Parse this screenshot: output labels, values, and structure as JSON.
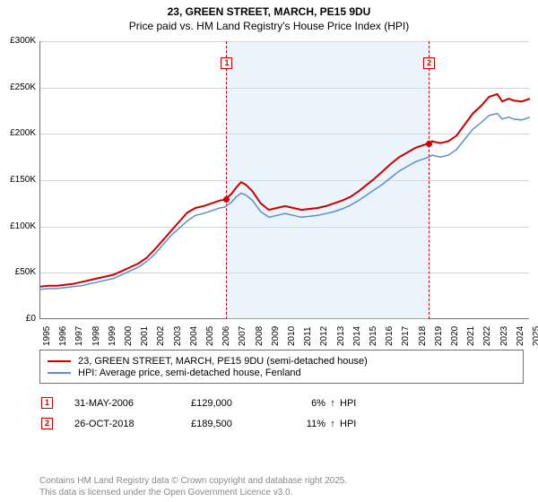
{
  "chart": {
    "type": "line",
    "address": "23, GREEN STREET, MARCH, PE15 9DU",
    "subtitle": "Price paid vs. HM Land Registry's House Price Index (HPI)",
    "background_color": "#ffffff",
    "axis_color": "#707070",
    "grid_color": "#d0d0d0",
    "axis_label_fontsize": 10,
    "ylim": [
      0,
      300000
    ],
    "ytick_step": 50000,
    "yticks": [
      "£0",
      "£50K",
      "£100K",
      "£150K",
      "£200K",
      "£250K",
      "£300K"
    ],
    "xlim": [
      1995,
      2025
    ],
    "xticks": [
      1995,
      1996,
      1997,
      1998,
      1999,
      2000,
      2001,
      2002,
      2003,
      2004,
      2005,
      2006,
      2007,
      2008,
      2009,
      2010,
      2011,
      2012,
      2013,
      2014,
      2015,
      2016,
      2017,
      2018,
      2019,
      2020,
      2021,
      2022,
      2023,
      2024,
      2025
    ],
    "series": [
      {
        "name": "property",
        "label": "23, GREEN STREET, MARCH, PE15 9DU (semi-detached house)",
        "color": "#cc0000",
        "line_width": 2,
        "values": [
          [
            1995,
            35000
          ],
          [
            1995.5,
            36000
          ],
          [
            1996,
            36000
          ],
          [
            1996.5,
            37000
          ],
          [
            1997,
            38000
          ],
          [
            1997.5,
            40000
          ],
          [
            1998,
            42000
          ],
          [
            1998.5,
            44000
          ],
          [
            1999,
            46000
          ],
          [
            1999.5,
            48000
          ],
          [
            2000,
            52000
          ],
          [
            2000.5,
            56000
          ],
          [
            2001,
            60000
          ],
          [
            2001.5,
            66000
          ],
          [
            2002,
            75000
          ],
          [
            2002.5,
            85000
          ],
          [
            2003,
            95000
          ],
          [
            2003.5,
            105000
          ],
          [
            2004,
            115000
          ],
          [
            2004.5,
            120000
          ],
          [
            2005,
            122000
          ],
          [
            2005.5,
            125000
          ],
          [
            2006,
            128000
          ],
          [
            2006.3,
            129000
          ],
          [
            2006.7,
            135000
          ],
          [
            2007,
            142000
          ],
          [
            2007.3,
            148000
          ],
          [
            2007.6,
            145000
          ],
          [
            2008,
            138000
          ],
          [
            2008.5,
            125000
          ],
          [
            2009,
            118000
          ],
          [
            2009.5,
            120000
          ],
          [
            2010,
            122000
          ],
          [
            2010.5,
            120000
          ],
          [
            2011,
            118000
          ],
          [
            2011.5,
            119000
          ],
          [
            2012,
            120000
          ],
          [
            2012.5,
            122000
          ],
          [
            2013,
            125000
          ],
          [
            2013.5,
            128000
          ],
          [
            2014,
            132000
          ],
          [
            2014.5,
            138000
          ],
          [
            2015,
            145000
          ],
          [
            2015.5,
            152000
          ],
          [
            2016,
            160000
          ],
          [
            2016.5,
            168000
          ],
          [
            2017,
            175000
          ],
          [
            2017.5,
            180000
          ],
          [
            2018,
            185000
          ],
          [
            2018.5,
            188000
          ],
          [
            2018.8,
            190000
          ],
          [
            2019,
            192000
          ],
          [
            2019.5,
            190000
          ],
          [
            2020,
            192000
          ],
          [
            2020.5,
            198000
          ],
          [
            2021,
            210000
          ],
          [
            2021.5,
            222000
          ],
          [
            2022,
            230000
          ],
          [
            2022.5,
            240000
          ],
          [
            2023,
            243000
          ],
          [
            2023.3,
            235000
          ],
          [
            2023.7,
            238000
          ],
          [
            2024,
            236000
          ],
          [
            2024.5,
            235000
          ],
          [
            2025,
            238000
          ]
        ]
      },
      {
        "name": "hpi",
        "label": "HPI: Average price, semi-detached house, Fenland",
        "color": "#5b8fd0",
        "line_width": 1.5,
        "values": [
          [
            1995,
            32000
          ],
          [
            1995.5,
            33000
          ],
          [
            1996,
            33000
          ],
          [
            1996.5,
            34000
          ],
          [
            1997,
            35000
          ],
          [
            1997.5,
            36000
          ],
          [
            1998,
            38000
          ],
          [
            1998.5,
            40000
          ],
          [
            1999,
            42000
          ],
          [
            1999.5,
            44000
          ],
          [
            2000,
            48000
          ],
          [
            2000.5,
            52000
          ],
          [
            2001,
            56000
          ],
          [
            2001.5,
            62000
          ],
          [
            2002,
            70000
          ],
          [
            2002.5,
            80000
          ],
          [
            2003,
            90000
          ],
          [
            2003.5,
            98000
          ],
          [
            2004,
            106000
          ],
          [
            2004.5,
            112000
          ],
          [
            2005,
            114000
          ],
          [
            2005.5,
            117000
          ],
          [
            2006,
            120000
          ],
          [
            2006.3,
            121000
          ],
          [
            2006.7,
            126000
          ],
          [
            2007,
            132000
          ],
          [
            2007.3,
            136000
          ],
          [
            2007.6,
            134000
          ],
          [
            2008,
            128000
          ],
          [
            2008.5,
            116000
          ],
          [
            2009,
            110000
          ],
          [
            2009.5,
            112000
          ],
          [
            2010,
            114000
          ],
          [
            2010.5,
            112000
          ],
          [
            2011,
            110000
          ],
          [
            2011.5,
            111000
          ],
          [
            2012,
            112000
          ],
          [
            2012.5,
            114000
          ],
          [
            2013,
            116000
          ],
          [
            2013.5,
            119000
          ],
          [
            2014,
            123000
          ],
          [
            2014.5,
            128000
          ],
          [
            2015,
            134000
          ],
          [
            2015.5,
            140000
          ],
          [
            2016,
            146000
          ],
          [
            2016.5,
            153000
          ],
          [
            2017,
            160000
          ],
          [
            2017.5,
            165000
          ],
          [
            2018,
            170000
          ],
          [
            2018.5,
            173000
          ],
          [
            2018.8,
            175000
          ],
          [
            2019,
            177000
          ],
          [
            2019.5,
            175000
          ],
          [
            2020,
            177000
          ],
          [
            2020.5,
            183000
          ],
          [
            2021,
            194000
          ],
          [
            2021.5,
            205000
          ],
          [
            2022,
            212000
          ],
          [
            2022.5,
            220000
          ],
          [
            2023,
            222000
          ],
          [
            2023.3,
            216000
          ],
          [
            2023.7,
            218000
          ],
          [
            2024,
            216000
          ],
          [
            2024.5,
            215000
          ],
          [
            2025,
            218000
          ]
        ]
      }
    ],
    "markers": [
      {
        "id": "1",
        "year": 2006.4,
        "color": "#cc0000"
      },
      {
        "id": "2",
        "year": 2018.8,
        "color": "#cc0000"
      }
    ],
    "shade": {
      "from_year": 2006.4,
      "to_year": 2018.8,
      "color": "#d2e6f6",
      "opacity": 0.45
    },
    "transaction_points": [
      {
        "year": 2006.4,
        "value": 129000,
        "color": "#cc0000"
      },
      {
        "year": 2018.8,
        "value": 189500,
        "color": "#cc0000"
      }
    ]
  },
  "legend": {
    "items": [
      {
        "color": "#cc0000",
        "label": "23, GREEN STREET, MARCH, PE15 9DU (semi-detached house)",
        "width": 2
      },
      {
        "color": "#5b8fd0",
        "label": "HPI: Average price, semi-detached house, Fenland",
        "width": 1.5
      }
    ]
  },
  "transactions": [
    {
      "id": "1",
      "marker_color": "#cc0000",
      "date": "31-MAY-2006",
      "price": "£129,000",
      "pct": "6%",
      "arrow": "↑",
      "hpi_label": "HPI"
    },
    {
      "id": "2",
      "marker_color": "#cc0000",
      "date": "26-OCT-2018",
      "price": "£189,500",
      "pct": "11%",
      "arrow": "↑",
      "hpi_label": "HPI"
    }
  ],
  "attribution": {
    "line1": "Contains HM Land Registry data © Crown copyright and database right 2025.",
    "line2": "This data is licensed under the Open Government Licence v3.0."
  }
}
